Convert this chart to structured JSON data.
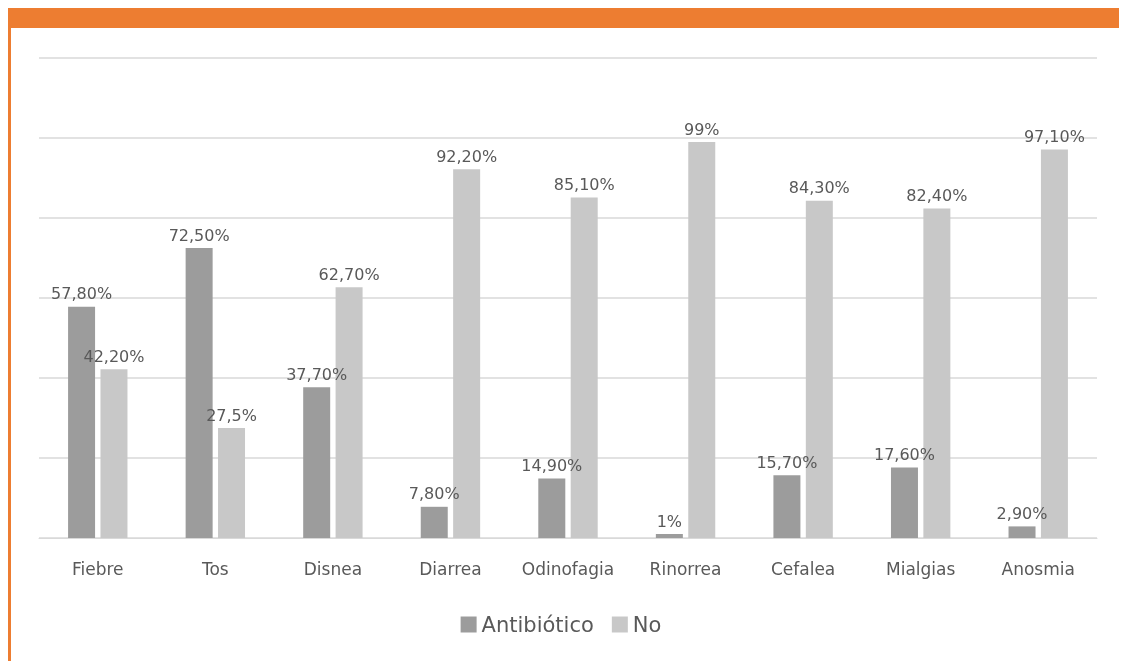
{
  "chart_data": {
    "type": "bar",
    "categories": [
      "Fiebre",
      "Tos",
      "Disnea",
      "Diarrea",
      "Odinofagia",
      "Rinorrea",
      "Cefalea",
      "Mialgias",
      "Anosmia"
    ],
    "series": [
      {
        "name": "Antibiótico",
        "color": "#9c9c9c",
        "values": [
          57.8,
          72.5,
          37.7,
          7.8,
          14.9,
          1,
          15.7,
          17.6,
          2.9
        ],
        "value_labels": [
          "57,80%",
          "72,50%",
          "37,70%",
          "7,80%",
          "14,90%",
          "1%",
          "15,70%",
          "17,60%",
          "2,90%"
        ]
      },
      {
        "name": "No",
        "color": "#c8c8c8",
        "values": [
          42.2,
          27.5,
          62.7,
          92.2,
          85.1,
          99,
          84.3,
          82.4,
          97.1
        ],
        "value_labels": [
          "42,20%",
          "27,5%",
          "62,70%",
          "92,20%",
          "85,10%",
          "99%",
          "84,30%",
          "82,40%",
          "97,10%"
        ]
      }
    ],
    "ylim": [
      0,
      120
    ],
    "yticks": [
      {
        "value": 0,
        "label": null
      },
      {
        "value": 20,
        "label": null
      },
      {
        "value": 40,
        "label": null
      },
      {
        "value": 60,
        "label": null
      },
      {
        "value": 80,
        "label": null
      },
      {
        "value": 100,
        "label": null
      },
      {
        "value": 120,
        "label": null
      }
    ],
    "tick_labels": "x",
    "grid": "y",
    "legend": "bottom"
  }
}
